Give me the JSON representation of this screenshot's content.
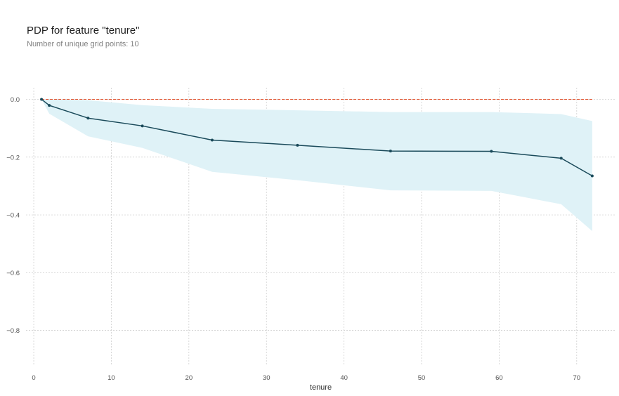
{
  "title": "PDP for feature \"tenure\"",
  "subtitle": "Number of unique grid points: 10",
  "chart_data": {
    "type": "line",
    "title": "PDP for feature \"tenure\"",
    "subtitle": "Number of unique grid points: 10",
    "xlabel": "tenure",
    "ylabel": "",
    "xlim": [
      -1,
      75
    ],
    "ylim": [
      -0.92,
      0.04
    ],
    "xticks": [
      0,
      10,
      20,
      30,
      40,
      50,
      60,
      70
    ],
    "yticks": [
      0.0,
      -0.2,
      -0.4,
      -0.6,
      -0.8
    ],
    "xtick_labels": [
      "0",
      "10",
      "20",
      "30",
      "40",
      "50",
      "60",
      "70"
    ],
    "ytick_labels": [
      "0.0",
      "−0.2",
      "−0.4",
      "−0.6",
      "−0.8"
    ],
    "grid": true,
    "series": [
      {
        "x": [
          1,
          2,
          7,
          14,
          23,
          34,
          46,
          59,
          68,
          72
        ],
        "values": [
          0.0,
          -0.021,
          -0.065,
          -0.092,
          -0.141,
          -0.159,
          -0.179,
          -0.18,
          -0.204,
          -0.265
        ],
        "color": "#1a4a5a"
      }
    ],
    "band": {
      "x": [
        1,
        2,
        7,
        14,
        23,
        34,
        46,
        59,
        68,
        72
      ],
      "upper": [
        0.0,
        0.0,
        -0.003,
        -0.02,
        -0.033,
        -0.038,
        -0.044,
        -0.044,
        -0.051,
        -0.075
      ],
      "lower": [
        0.0,
        -0.05,
        -0.128,
        -0.168,
        -0.251,
        -0.28,
        -0.315,
        -0.317,
        -0.363,
        -0.456
      ],
      "color": "#dff2f7"
    },
    "reference_line": {
      "y": 0.0,
      "color": "#e15532",
      "style": "dashed"
    }
  }
}
